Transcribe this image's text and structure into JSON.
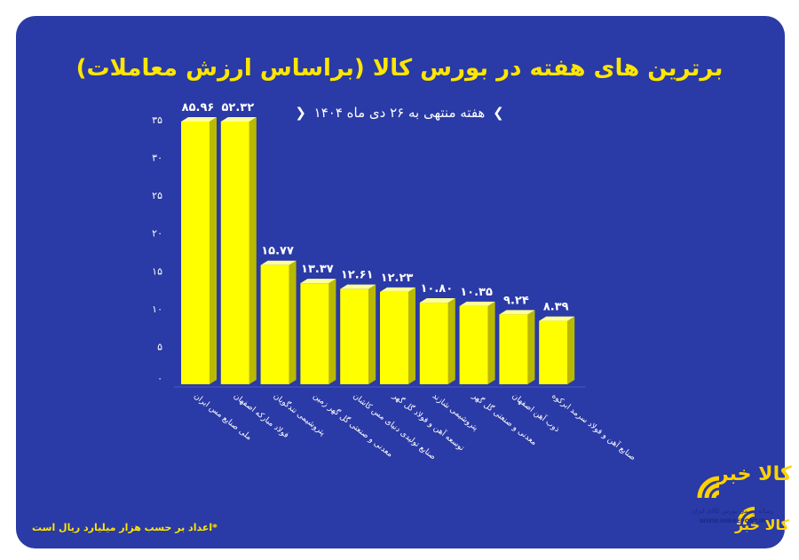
{
  "colors": {
    "background": "#2a3aa6",
    "bar_front": "#ffff00",
    "bar_side": "#b9b900",
    "bar_top": "#ffff99",
    "title": "#ffe600",
    "text": "#ffffff"
  },
  "header": {
    "title": "برترین های هفته در بورس کالا (براساس ارزش معاملات)",
    "subtitle": "هفته منتهی به ۲۶ دی ماه ۱۴۰۴",
    "subtitle_bracket_left": "❮",
    "subtitle_bracket_right": "❯"
  },
  "footnote": "*اعداد بر حسب هزار میلیارد ریال است",
  "logo": {
    "name": "کالا خبر",
    "tagline": "رسانه رسمی بورس کالای ایران",
    "url": "WWW.IMEREPORT.IR",
    "name_small": "کالا خبر"
  },
  "chart_data": {
    "type": "bar",
    "title": "برترین های هفته در بورس کالا (براساس ارزش معاملات)",
    "subtitle": "هفته منتهی به ۲۶ دی ماه ۱۴۰۴",
    "categories": [
      "ملی صنایع مس ایران",
      "فولاد مبارکه اصفهان",
      "پتروشیمی تندگویان",
      "معدنی و صنعتی گل گهر زمین",
      "صنایع تولیدی دنیای مس کاشان",
      "توسعه آهن و فولاد گل گهر",
      "پتروشیمی شازند",
      "معدنی و صنعتی گل گهر",
      "ذوب آهن اصفهان",
      "صنایع آهن و فولاد سرمد ابرکوه"
    ],
    "values": [
      85.96,
      52.32,
      15.77,
      13.37,
      12.61,
      12.23,
      10.8,
      10.35,
      9.24,
      8.39
    ],
    "value_labels": [
      "۸۵.۹۶",
      "۵۲.۳۲",
      "۱۵.۷۷",
      "۱۳.۳۷",
      "۱۲.۶۱",
      "۱۲.۲۳",
      "۱۰.۸۰",
      "۱۰.۳۵",
      "۹.۲۴",
      "۸.۳۹"
    ],
    "y_ticks": [
      0,
      5,
      10,
      15,
      20,
      25,
      30,
      35
    ],
    "y_tick_labels": [
      "۰",
      "۵",
      "۱۰",
      "۱۵",
      "۲۰",
      "۲۵",
      "۳۰",
      "۳۵"
    ],
    "ylim": [
      0,
      35
    ],
    "xlabel": "",
    "ylabel": "",
    "grid": false,
    "legend": "none"
  }
}
